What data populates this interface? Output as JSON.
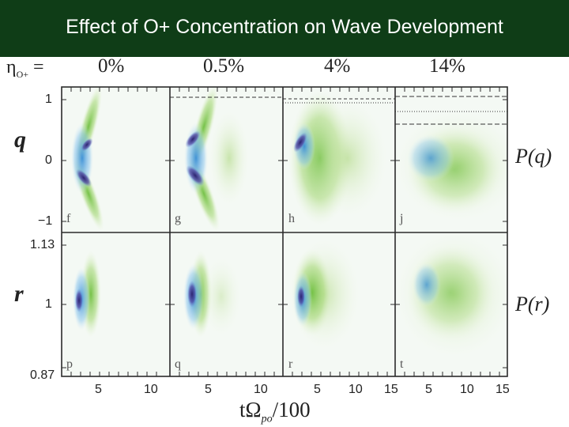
{
  "slide": {
    "title": "Effect of O+ Concentration on Wave Development"
  },
  "figure": {
    "eta_label": "η",
    "eta_sub": "O+",
    "eta_eq": "=",
    "columns": [
      "0%",
      "0.5%",
      "4%",
      "14%"
    ],
    "row_top": {
      "ylabel": "q",
      "ticks": [
        "1",
        "0",
        "−1"
      ],
      "right_label": "P(q)",
      "panels": [
        "f",
        "g",
        "h",
        "j"
      ]
    },
    "row_bottom": {
      "ylabel": "r",
      "ticks": [
        "1.13",
        "1",
        "0.87"
      ],
      "right_label": "P(r)",
      "panels": [
        "p",
        "q",
        "r",
        "t"
      ]
    },
    "xticks": [
      "5",
      "10",
      "5",
      "10",
      "5",
      "10",
      "15",
      "5",
      "10",
      "15"
    ],
    "xaxis_label": "tΩ",
    "xaxis_sub": "po",
    "xaxis_suffix": "/100"
  },
  "colors": {
    "title_bg": "#0f3d17",
    "green": "#7cc24a",
    "blue": "#4aa8e0",
    "purple": "#3b2f8a"
  }
}
